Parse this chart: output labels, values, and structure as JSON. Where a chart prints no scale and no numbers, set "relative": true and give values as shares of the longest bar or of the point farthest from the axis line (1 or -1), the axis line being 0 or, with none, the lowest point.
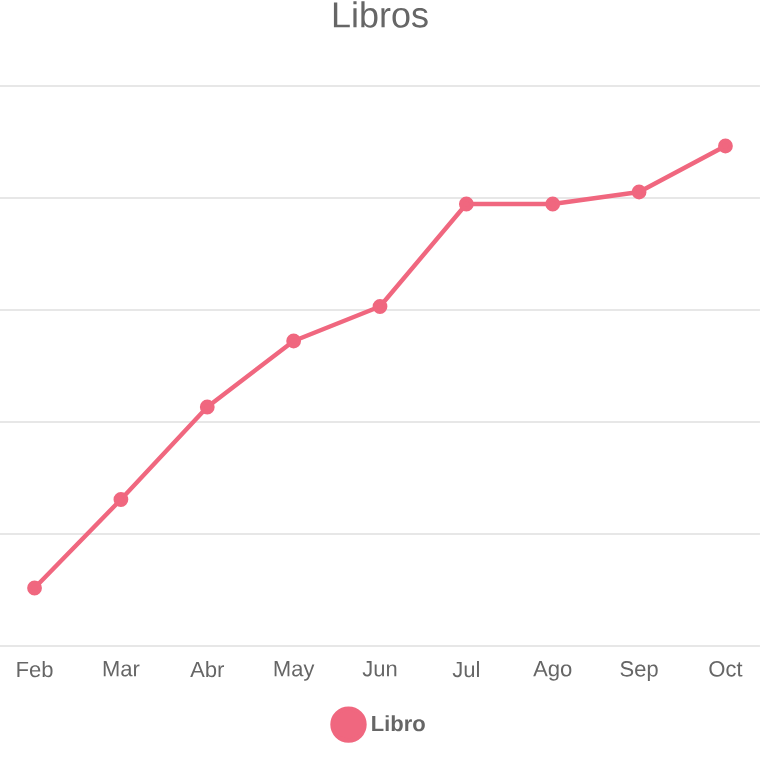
{
  "chart_data": {
    "type": "line",
    "title": "Libros",
    "categories": [
      "Feb",
      "Mar",
      "Abr",
      "May",
      "Jun",
      "Jul",
      "Ago",
      "Sep",
      "Oct"
    ],
    "relative": true,
    "series": [
      {
        "name": "Libro",
        "color": "#f0677f",
        "values": [
          0.116,
          0.293,
          0.478,
          0.61,
          0.679,
          0.884,
          0.884,
          0.908,
          1
        ]
      }
    ],
    "grid": "y",
    "legend": "bottom",
    "marker": "circle",
    "line_style": "solid"
  }
}
